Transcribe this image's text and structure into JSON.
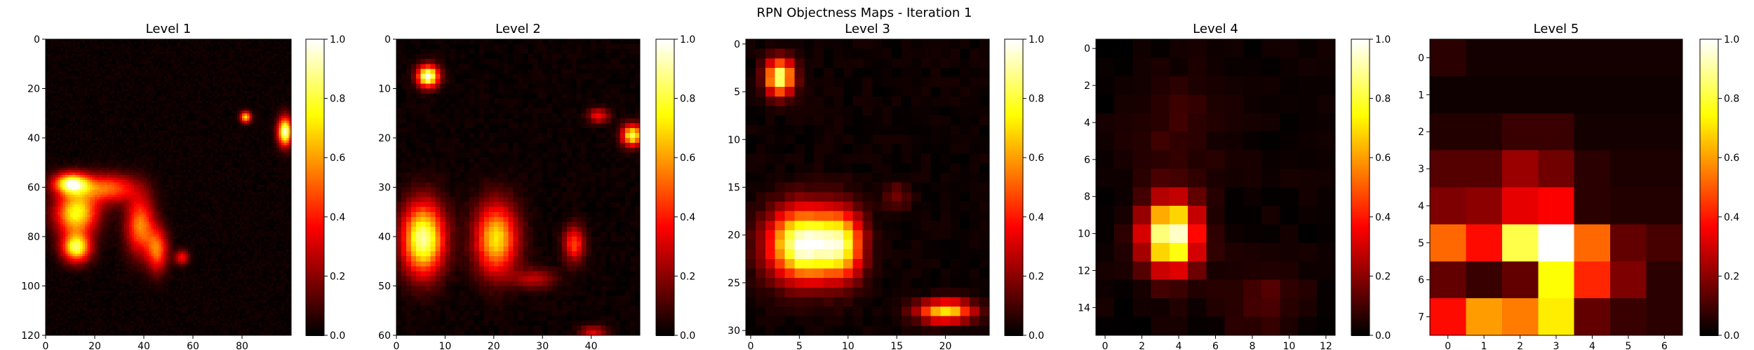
{
  "figure_title": "RPN Objectness Maps - Iteration 1",
  "colormap": {
    "name": "hot",
    "stops": [
      {
        "v": 0.0,
        "color": "#000000"
      },
      {
        "v": 0.365,
        "color": "#ff0000"
      },
      {
        "v": 0.746,
        "color": "#ffff00"
      },
      {
        "v": 1.0,
        "color": "#ffffff"
      }
    ]
  },
  "colorbar": {
    "range": [
      0,
      1
    ],
    "ticks": [
      "0.0",
      "0.2",
      "0.4",
      "0.6",
      "0.8",
      "1.0"
    ]
  },
  "chart_data": [
    {
      "type": "heatmap",
      "title": "Level 1",
      "grid": [
        100,
        120
      ],
      "xlim": [
        0,
        100
      ],
      "ylim": [
        0,
        120
      ],
      "xticks": [
        0,
        20,
        40,
        60,
        80
      ],
      "yticks": [
        0,
        20,
        40,
        60,
        80,
        100,
        120
      ],
      "hotspots": [
        {
          "x": 10,
          "y": 58,
          "sx": 5,
          "sy": 3,
          "amp": 0.85
        },
        {
          "x": 12,
          "y": 70,
          "sx": 6,
          "sy": 6,
          "amp": 0.75
        },
        {
          "x": 12,
          "y": 84,
          "sx": 4,
          "sy": 4,
          "amp": 0.8
        },
        {
          "x": 25,
          "y": 60,
          "sx": 8,
          "sy": 4,
          "amp": 0.5
        },
        {
          "x": 38,
          "y": 75,
          "sx": 4,
          "sy": 8,
          "amp": 0.55
        },
        {
          "x": 45,
          "y": 85,
          "sx": 3,
          "sy": 6,
          "amp": 0.5
        },
        {
          "x": 97,
          "y": 37,
          "sx": 2,
          "sy": 4,
          "amp": 0.95
        },
        {
          "x": 81,
          "y": 31,
          "sx": 1.5,
          "sy": 1.5,
          "amp": 0.7
        },
        {
          "x": 55,
          "y": 88,
          "sx": 2,
          "sy": 2,
          "amp": 0.35
        }
      ]
    },
    {
      "type": "heatmap",
      "title": "Level 2",
      "grid": [
        50,
        60
      ],
      "xlim": [
        0,
        50
      ],
      "ylim": [
        0,
        60
      ],
      "xticks": [
        0,
        10,
        20,
        30,
        40
      ],
      "yticks": [
        0,
        10,
        20,
        30,
        40,
        50,
        60
      ],
      "hotspots": [
        {
          "x": 6,
          "y": 7,
          "sx": 1.5,
          "sy": 1.5,
          "amp": 1.0
        },
        {
          "x": 5,
          "y": 40,
          "sx": 3,
          "sy": 5,
          "amp": 0.9
        },
        {
          "x": 20,
          "y": 40,
          "sx": 3,
          "sy": 5,
          "amp": 0.7
        },
        {
          "x": 48,
          "y": 19,
          "sx": 1.5,
          "sy": 1.5,
          "amp": 0.8
        },
        {
          "x": 36,
          "y": 41,
          "sx": 1.5,
          "sy": 2.5,
          "amp": 0.45
        },
        {
          "x": 41,
          "y": 15,
          "sx": 1.5,
          "sy": 1,
          "amp": 0.35
        },
        {
          "x": 28,
          "y": 48,
          "sx": 3,
          "sy": 1.5,
          "amp": 0.25
        },
        {
          "x": 40,
          "y": 59,
          "sx": 2,
          "sy": 1,
          "amp": 0.3
        }
      ]
    },
    {
      "type": "heatmap",
      "title": "Level 3",
      "grid": [
        25,
        31
      ],
      "xlim": [
        -0.5,
        24.5
      ],
      "ylim": [
        -0.5,
        30.5
      ],
      "xticks": [
        0,
        5,
        10,
        15,
        20
      ],
      "yticks": [
        0,
        5,
        10,
        15,
        20,
        25,
        30
      ],
      "hotspots": [
        {
          "x": 3,
          "y": 3.5,
          "sx": 1,
          "sy": 1.3,
          "amp": 0.9
        },
        {
          "x": 5.5,
          "y": 21,
          "sx": 2.5,
          "sy": 2.6,
          "amp": 1.0
        },
        {
          "x": 9.5,
          "y": 21,
          "sx": 1.5,
          "sy": 2.5,
          "amp": 0.6
        },
        {
          "x": 20,
          "y": 28,
          "sx": 2,
          "sy": 0.8,
          "amp": 0.7
        },
        {
          "x": 15,
          "y": 16,
          "sx": 1,
          "sy": 1,
          "amp": 0.15
        }
      ]
    },
    {
      "type": "heatmap",
      "title": "Level 4",
      "grid": [
        13,
        16
      ],
      "xlim": [
        -0.5,
        12.5
      ],
      "ylim": [
        -0.5,
        15.5
      ],
      "xticks": [
        0,
        2,
        4,
        6,
        8,
        10,
        12
      ],
      "yticks": [
        0,
        2,
        4,
        6,
        8,
        10,
        12,
        14
      ],
      "hotspots": [
        {
          "x": 3.6,
          "y": 10.1,
          "sx": 1.0,
          "sy": 1.3,
          "amp": 1.0
        },
        {
          "x": 8.5,
          "y": 13.5,
          "sx": 1.5,
          "sy": 1.2,
          "amp": 0.1
        },
        {
          "x": 4,
          "y": 4.5,
          "sx": 1.5,
          "sy": 2,
          "amp": 0.07
        }
      ]
    },
    {
      "type": "heatmap",
      "title": "Level 5",
      "grid": [
        7,
        8
      ],
      "xlim": [
        -0.5,
        6.5
      ],
      "ylim": [
        -0.5,
        7.5
      ],
      "xticks": [
        0,
        1,
        2,
        3,
        4,
        5,
        6
      ],
      "yticks": [
        0,
        1,
        2,
        3,
        4,
        5,
        6,
        7
      ],
      "values": [
        [
          0.06,
          0.03,
          0.03,
          0.03,
          0.03,
          0.03,
          0.03
        ],
        [
          0.02,
          0.02,
          0.02,
          0.02,
          0.02,
          0.02,
          0.02
        ],
        [
          0.05,
          0.05,
          0.08,
          0.08,
          0.03,
          0.03,
          0.03
        ],
        [
          0.12,
          0.12,
          0.22,
          0.16,
          0.06,
          0.04,
          0.04
        ],
        [
          0.18,
          0.2,
          0.33,
          0.36,
          0.06,
          0.05,
          0.05
        ],
        [
          0.52,
          0.38,
          0.82,
          1.0,
          0.52,
          0.14,
          0.1
        ],
        [
          0.14,
          0.08,
          0.14,
          0.75,
          0.42,
          0.18,
          0.06
        ],
        [
          0.38,
          0.6,
          0.55,
          0.72,
          0.14,
          0.08,
          0.06
        ]
      ]
    }
  ]
}
